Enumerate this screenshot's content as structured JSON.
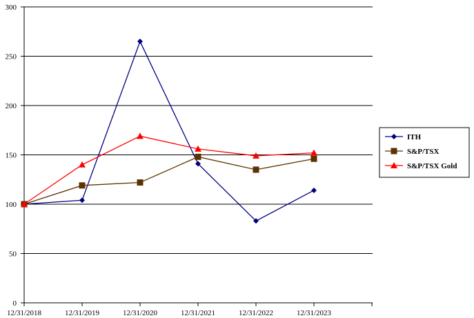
{
  "chart_data": {
    "type": "line",
    "title": "",
    "xlabel": "",
    "ylabel": "",
    "categories": [
      "12/31/2018",
      "12/31/2019",
      "12/31/2020",
      "12/31/2021",
      "12/31/2022",
      "12/31/2023"
    ],
    "ylim": [
      0,
      300
    ],
    "yticks": [
      0,
      50,
      100,
      150,
      200,
      250,
      300
    ],
    "grid": "horizontal",
    "legend_position": "right",
    "series": [
      {
        "name": "ITH",
        "marker": "diamond",
        "color": "#000080",
        "values": [
          100,
          104,
          265,
          141,
          83,
          114
        ]
      },
      {
        "name": "S&P/TSX",
        "marker": "square",
        "color": "#5A3300",
        "values": [
          100,
          119,
          122,
          148,
          135,
          146
        ]
      },
      {
        "name": "S&P/TSX Gold",
        "marker": "triangle",
        "color": "#FF0000",
        "values": [
          100,
          140,
          169,
          156,
          149,
          152
        ]
      }
    ]
  }
}
